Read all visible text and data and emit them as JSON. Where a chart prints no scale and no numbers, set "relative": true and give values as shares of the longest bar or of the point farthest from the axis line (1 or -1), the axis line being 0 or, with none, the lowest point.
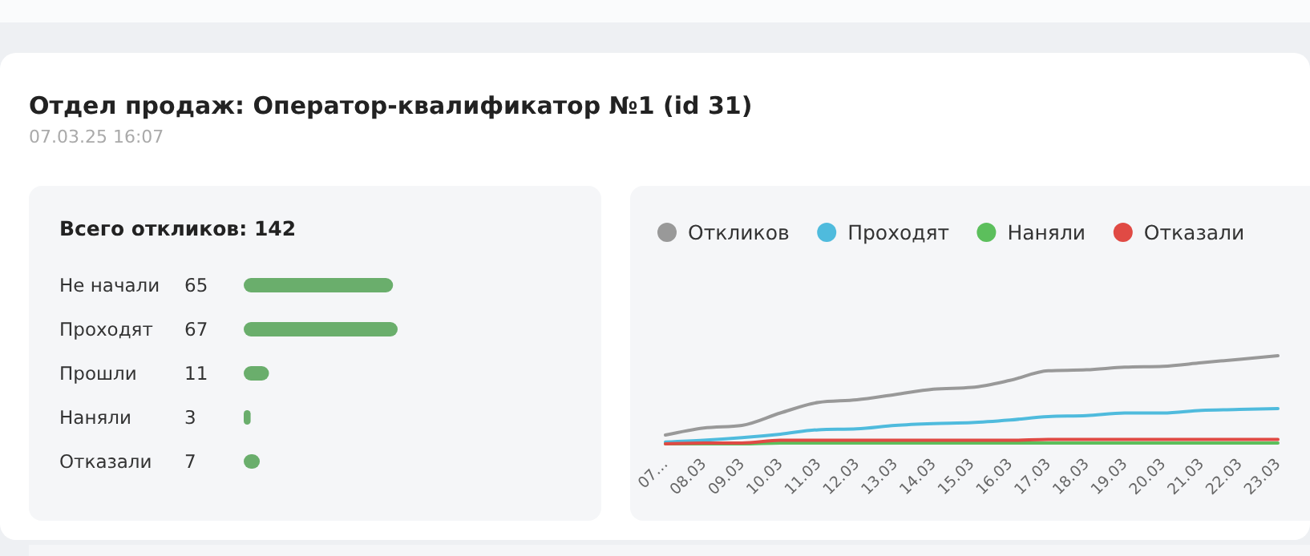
{
  "chart_data": [
    {
      "type": "other",
      "title": "Отдел продаж: Оператор-квалификатор №1 (id 31)",
      "subtitle": "07.03.25 16:07"
    },
    {
      "type": "bar",
      "orientation": "horizontal",
      "title": "Всего откликов: 142",
      "categories": [
        "Не начали",
        "Проходят",
        "Прошли",
        "Наняли",
        "Отказали"
      ],
      "values": [
        65,
        67,
        11,
        3,
        7
      ],
      "color": "#6aae6c",
      "data_labels": true
    },
    {
      "type": "line",
      "relative": true,
      "legend": "top left",
      "marker": "none",
      "categories": [
        "07…",
        "08.03",
        "09.03",
        "10.03",
        "11.03",
        "12.03",
        "13.03",
        "14.03",
        "15.03",
        "16.03",
        "17.03",
        "18.03",
        "19.03",
        "20.03",
        "21.03",
        "22.03",
        "23.03"
      ],
      "series": [
        {
          "name": "Откликов",
          "color": "#999999",
          "values": [
            0.1,
            0.18,
            0.21,
            0.35,
            0.47,
            0.5,
            0.56,
            0.62,
            0.64,
            0.72,
            0.83,
            0.84,
            0.87,
            0.88,
            0.92,
            0.96,
            1
          ]
        },
        {
          "name": "Проходят",
          "color": "#4fbbdd",
          "values": [
            0.02,
            0.04,
            0.07,
            0.11,
            0.16,
            0.17,
            0.21,
            0.23,
            0.24,
            0.27,
            0.31,
            0.32,
            0.35,
            0.35,
            0.38,
            0.39,
            0.4
          ]
        },
        {
          "name": "Наняли",
          "color": "#5cbf5c",
          "values": [
            0,
            0,
            0,
            0.01,
            0.01,
            0.01,
            0.01,
            0.01,
            0.01,
            0.01,
            0.01,
            0.01,
            0.01,
            0.01,
            0.01,
            0.01,
            0.01
          ]
        },
        {
          "name": "Отказали",
          "color": "#e04a44",
          "values": [
            0,
            0.01,
            0.01,
            0.04,
            0.04,
            0.04,
            0.04,
            0.04,
            0.04,
            0.04,
            0.05,
            0.05,
            0.05,
            0.05,
            0.05,
            0.05,
            0.05
          ]
        }
      ]
    }
  ]
}
